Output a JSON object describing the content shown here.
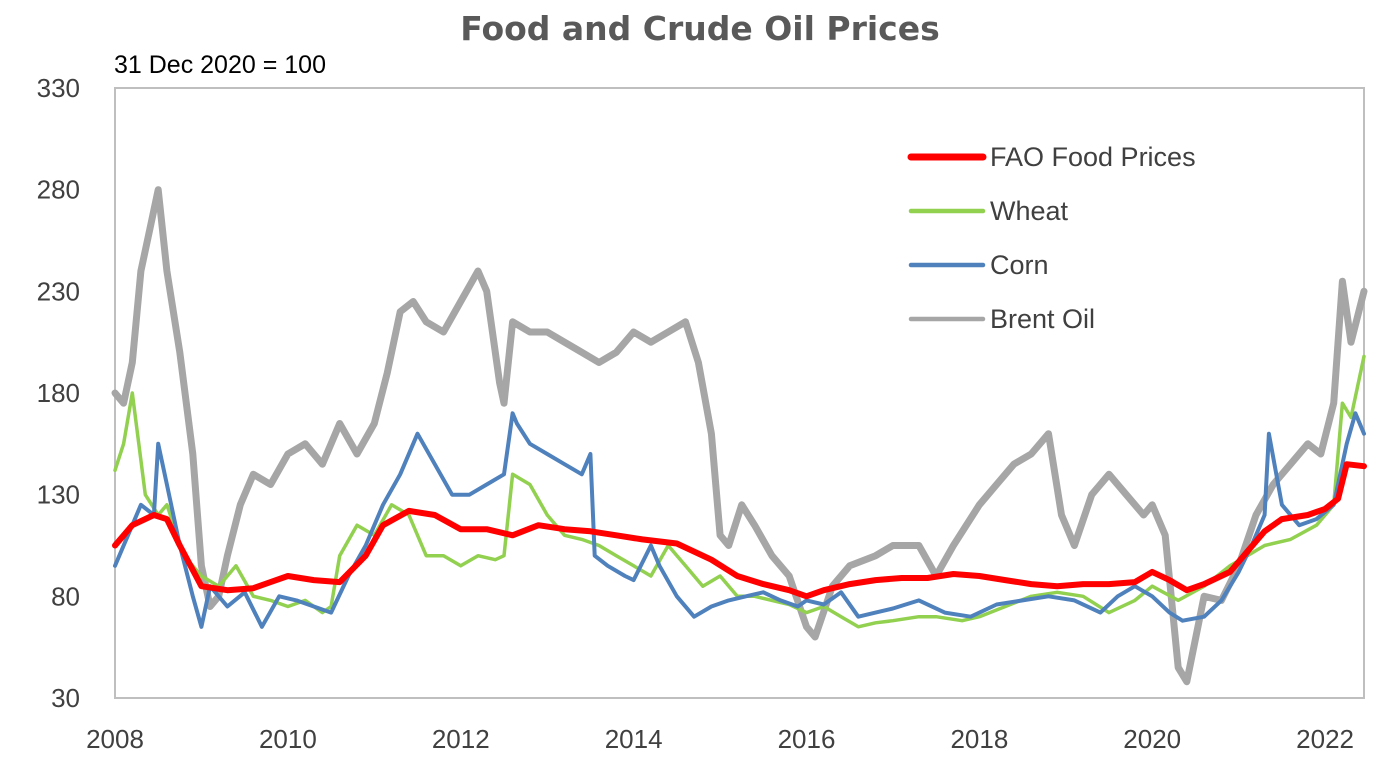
{
  "chart_data": {
    "type": "line",
    "title": "Food and Crude Oil Prices",
    "subtitle": "31 Dec 2020 = 100",
    "xlabel": "",
    "ylabel": "",
    "xlim": [
      2008,
      2022.45
    ],
    "ylim": [
      30,
      330
    ],
    "y_ticks": [
      330,
      280,
      230,
      180,
      130,
      80,
      30
    ],
    "x_ticks": [
      2008,
      2010,
      2012,
      2014,
      2016,
      2018,
      2020,
      2022
    ],
    "grid": false,
    "legend_position": "top-right",
    "series": [
      {
        "name": "FAO Food Prices",
        "color": "#ff0000",
        "x": [
          2008.0,
          2008.2,
          2008.45,
          2008.6,
          2008.75,
          2009.0,
          2009.3,
          2009.6,
          2009.8,
          2010.0,
          2010.3,
          2010.6,
          2010.9,
          2011.1,
          2011.4,
          2011.7,
          2012.0,
          2012.3,
          2012.6,
          2012.9,
          2013.2,
          2013.5,
          2013.8,
          2014.1,
          2014.5,
          2014.9,
          2015.2,
          2015.5,
          2015.8,
          2016.0,
          2016.2,
          2016.5,
          2016.8,
          2017.1,
          2017.4,
          2017.7,
          2018.0,
          2018.3,
          2018.6,
          2018.9,
          2019.2,
          2019.5,
          2019.8,
          2020.0,
          2020.2,
          2020.4,
          2020.6,
          2020.9,
          2021.1,
          2021.3,
          2021.5,
          2021.8,
          2022.0,
          2022.15,
          2022.25,
          2022.45
        ],
        "y": [
          105,
          115,
          120,
          118,
          105,
          85,
          83,
          84,
          87,
          90,
          88,
          87,
          100,
          115,
          122,
          120,
          113,
          113,
          110,
          115,
          113,
          112,
          110,
          108,
          106,
          98,
          90,
          86,
          83,
          80,
          83,
          86,
          88,
          89,
          89,
          91,
          90,
          88,
          86,
          85,
          86,
          86,
          87,
          92,
          88,
          83,
          86,
          92,
          102,
          112,
          118,
          120,
          123,
          128,
          145,
          144
        ]
      },
      {
        "name": "Wheat",
        "color": "#92d050",
        "x": [
          2008.0,
          2008.1,
          2008.2,
          2008.35,
          2008.5,
          2008.6,
          2008.8,
          2009.0,
          2009.2,
          2009.4,
          2009.6,
          2009.8,
          2010.0,
          2010.2,
          2010.4,
          2010.5,
          2010.6,
          2010.8,
          2011.0,
          2011.2,
          2011.4,
          2011.6,
          2011.8,
          2012.0,
          2012.2,
          2012.4,
          2012.5,
          2012.6,
          2012.8,
          2013.0,
          2013.2,
          2013.4,
          2013.6,
          2013.8,
          2014.0,
          2014.2,
          2014.4,
          2014.6,
          2014.8,
          2015.0,
          2015.2,
          2015.4,
          2015.6,
          2015.8,
          2016.0,
          2016.2,
          2016.4,
          2016.6,
          2016.8,
          2017.0,
          2017.3,
          2017.5,
          2017.8,
          2018.0,
          2018.3,
          2018.6,
          2018.9,
          2019.2,
          2019.5,
          2019.8,
          2020.0,
          2020.3,
          2020.6,
          2020.9,
          2021.1,
          2021.3,
          2021.6,
          2021.9,
          2022.1,
          2022.2,
          2022.3,
          2022.45
        ],
        "y": [
          142,
          155,
          180,
          130,
          120,
          125,
          100,
          90,
          85,
          95,
          80,
          78,
          75,
          78,
          72,
          75,
          100,
          115,
          110,
          125,
          120,
          100,
          100,
          95,
          100,
          98,
          100,
          140,
          135,
          120,
          110,
          108,
          105,
          100,
          95,
          90,
          105,
          95,
          85,
          90,
          80,
          80,
          78,
          76,
          72,
          75,
          70,
          65,
          67,
          68,
          70,
          70,
          68,
          70,
          75,
          80,
          82,
          80,
          72,
          78,
          85,
          78,
          85,
          95,
          100,
          105,
          108,
          115,
          125,
          175,
          168,
          198
        ]
      },
      {
        "name": "Corn",
        "color": "#4f81bd",
        "x": [
          2008.0,
          2008.15,
          2008.3,
          2008.45,
          2008.5,
          2008.6,
          2008.75,
          2008.9,
          2009.0,
          2009.1,
          2009.3,
          2009.5,
          2009.7,
          2009.9,
          2010.1,
          2010.3,
          2010.5,
          2010.7,
          2010.9,
          2011.1,
          2011.3,
          2011.5,
          2011.7,
          2011.9,
          2012.1,
          2012.3,
          2012.5,
          2012.6,
          2012.65,
          2012.8,
          2013.0,
          2013.2,
          2013.4,
          2013.5,
          2013.55,
          2013.7,
          2013.9,
          2014.0,
          2014.2,
          2014.3,
          2014.5,
          2014.7,
          2014.9,
          2015.1,
          2015.3,
          2015.5,
          2015.7,
          2015.9,
          2016.0,
          2016.2,
          2016.4,
          2016.6,
          2016.8,
          2017.0,
          2017.3,
          2017.6,
          2017.9,
          2018.2,
          2018.5,
          2018.8,
          2019.1,
          2019.4,
          2019.6,
          2019.8,
          2020.0,
          2020.2,
          2020.35,
          2020.6,
          2020.8,
          2021.0,
          2021.15,
          2021.3,
          2021.35,
          2021.5,
          2021.7,
          2021.9,
          2022.1,
          2022.25,
          2022.35,
          2022.45
        ],
        "y": [
          95,
          110,
          125,
          120,
          155,
          135,
          105,
          80,
          65,
          85,
          75,
          82,
          65,
          80,
          78,
          75,
          72,
          90,
          105,
          125,
          140,
          160,
          145,
          130,
          130,
          135,
          140,
          170,
          165,
          155,
          150,
          145,
          140,
          150,
          100,
          95,
          90,
          88,
          105,
          95,
          80,
          70,
          75,
          78,
          80,
          82,
          78,
          75,
          78,
          76,
          82,
          70,
          72,
          74,
          78,
          72,
          70,
          76,
          78,
          80,
          78,
          72,
          80,
          85,
          80,
          72,
          68,
          70,
          78,
          92,
          105,
          120,
          160,
          125,
          115,
          118,
          125,
          155,
          170,
          160
        ]
      },
      {
        "name": "Brent Oil",
        "color": "#a6a6a6",
        "x": [
          2008.0,
          2008.1,
          2008.2,
          2008.3,
          2008.4,
          2008.5,
          2008.6,
          2008.75,
          2008.9,
          2009.0,
          2009.1,
          2009.2,
          2009.3,
          2009.45,
          2009.6,
          2009.8,
          2010.0,
          2010.2,
          2010.4,
          2010.6,
          2010.8,
          2011.0,
          2011.15,
          2011.3,
          2011.45,
          2011.6,
          2011.8,
          2012.0,
          2012.2,
          2012.3,
          2012.45,
          2012.5,
          2012.6,
          2012.8,
          2013.0,
          2013.2,
          2013.4,
          2013.6,
          2013.8,
          2014.0,
          2014.2,
          2014.4,
          2014.6,
          2014.75,
          2014.9,
          2015.0,
          2015.1,
          2015.25,
          2015.4,
          2015.6,
          2015.8,
          2016.0,
          2016.1,
          2016.3,
          2016.5,
          2016.8,
          2017.0,
          2017.3,
          2017.5,
          2017.7,
          2018.0,
          2018.2,
          2018.4,
          2018.6,
          2018.8,
          2018.95,
          2019.1,
          2019.3,
          2019.5,
          2019.7,
          2019.9,
          2020.0,
          2020.15,
          2020.3,
          2020.4,
          2020.6,
          2020.8,
          2021.0,
          2021.2,
          2021.4,
          2021.6,
          2021.8,
          2021.95,
          2022.1,
          2022.2,
          2022.3,
          2022.45
        ],
        "y": [
          180,
          175,
          195,
          240,
          260,
          280,
          240,
          200,
          150,
          95,
          75,
          80,
          100,
          125,
          140,
          135,
          150,
          155,
          145,
          165,
          150,
          165,
          190,
          220,
          225,
          215,
          210,
          225,
          240,
          230,
          185,
          175,
          215,
          210,
          210,
          205,
          200,
          195,
          200,
          210,
          205,
          210,
          215,
          195,
          160,
          110,
          105,
          125,
          115,
          100,
          90,
          65,
          60,
          85,
          95,
          100,
          105,
          105,
          90,
          105,
          125,
          135,
          145,
          150,
          160,
          120,
          105,
          130,
          140,
          130,
          120,
          125,
          110,
          45,
          38,
          80,
          78,
          95,
          120,
          135,
          145,
          155,
          150,
          175,
          235,
          205,
          230
        ]
      }
    ]
  }
}
